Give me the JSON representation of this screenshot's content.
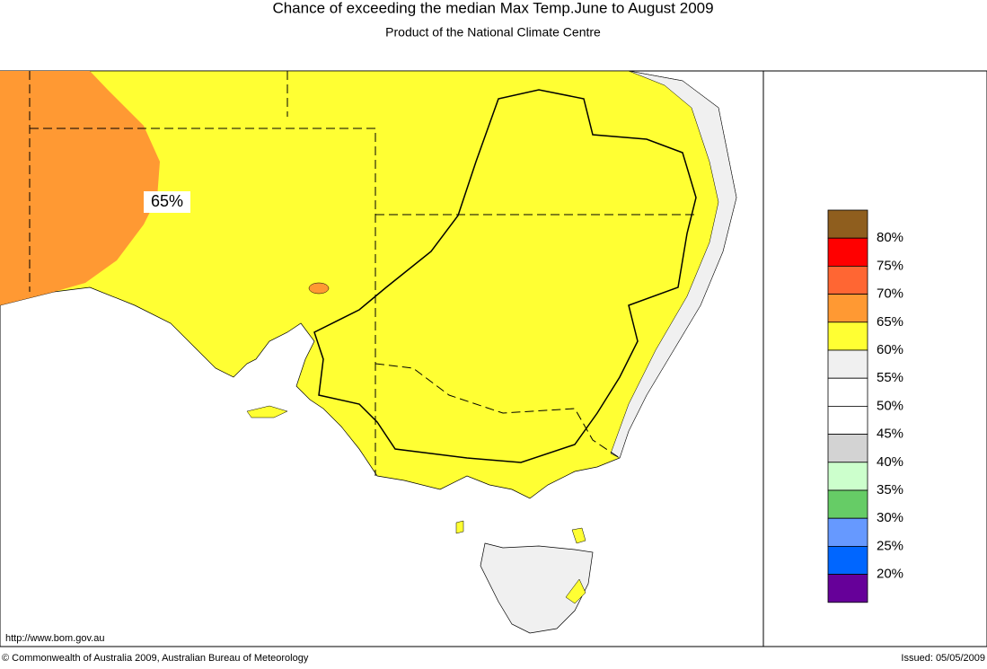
{
  "header": {
    "title": "Chance of exceeding the median Max Temp.June to August 2009",
    "subtitle": "Product of the National Climate Centre"
  },
  "map": {
    "region_label": "65%",
    "url": "http://www.bom.gov.au"
  },
  "legend": {
    "colors": [
      "#8f5e1e",
      "#ff0000",
      "#ff6633",
      "#ff9933",
      "#ffff33",
      "#f0f0f0",
      "#ffffff",
      "#ffffff",
      "#d3d3d3",
      "#ccffcc",
      "#66cc66",
      "#6699ff",
      "#0066ff",
      "#660099"
    ],
    "labels": [
      "80%",
      "75%",
      "70%",
      "65%",
      "60%",
      "55%",
      "50%",
      "45%",
      "40%",
      "35%",
      "30%",
      "25%",
      "20%"
    ]
  },
  "footer": {
    "copyright": "© Commonwealth of Australia 2009, Australian Bureau of Meteorology",
    "issued": "Issued: 05/05/2009"
  }
}
